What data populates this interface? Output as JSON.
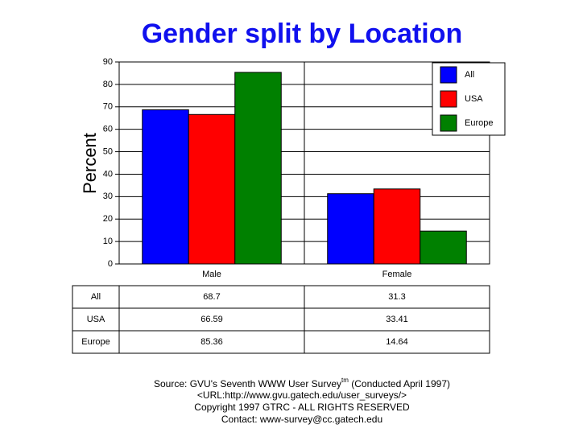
{
  "chart_data": {
    "type": "bar",
    "title": "Gender split by Location",
    "y_label": "Percent",
    "categories": [
      "Male",
      "Female"
    ],
    "series": [
      {
        "name": "All",
        "color": "#0000ff",
        "values": [
          68.7,
          31.3
        ]
      },
      {
        "name": "USA",
        "color": "#ff0000",
        "values": [
          66.59,
          33.41
        ]
      },
      {
        "name": "Europe",
        "color": "#008000",
        "values": [
          85.36,
          14.64
        ]
      }
    ],
    "ylim": [
      0,
      90
    ],
    "yticks": [
      0,
      10,
      20,
      30,
      40,
      50,
      60,
      70,
      80,
      90
    ],
    "grid": true,
    "legend": "upper right",
    "footer": {
      "source": "Source: GVU's Seventh WWW User Survey",
      "tm": "tm",
      "conducted": " (Conducted April 1997)",
      "url": "<URL:http://www.gvu.gatech.edu/user_surveys/>",
      "copyright": "Copyright 1997 GTRC - ALL RIGHTS RESERVED",
      "contact": "Contact: www-survey@cc.gatech.edu"
    }
  }
}
